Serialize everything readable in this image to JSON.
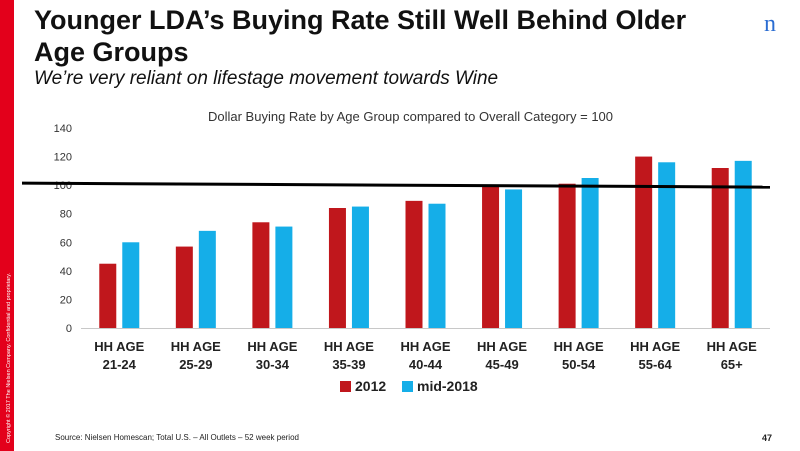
{
  "slide": {
    "title": "Younger LDA’s Buying Rate Still Well Behind Older Age Groups",
    "subtitle": "We’re very reliant on lifestage movement towards Wine",
    "source": "Source: Nielsen Homescan; Total U.S. – All Outlets – 52 week period",
    "page_number": "47",
    "copyright": "Copyright © 2017 The Nielsen Company. Confidential and proprietary.",
    "logo_letter": "n"
  },
  "colors": {
    "series_2012": "#c0171c",
    "series_2018": "#15aee8",
    "brand": "#e3001b",
    "reference_line": "#000000"
  },
  "chart_data": {
    "type": "bar",
    "title": "Dollar Buying Rate by Age Group compared to Overall Category = 100",
    "categories": [
      [
        "HH AGE",
        "21-24"
      ],
      [
        "HH AGE",
        "25-29"
      ],
      [
        "HH AGE",
        "30-34"
      ],
      [
        "HH AGE",
        "35-39"
      ],
      [
        "HH AGE",
        "40-44"
      ],
      [
        "HH AGE",
        "45-49"
      ],
      [
        "HH AGE",
        "50-54"
      ],
      [
        "HH AGE",
        "55-64"
      ],
      [
        "HH AGE",
        "65+"
      ]
    ],
    "series": [
      {
        "name": "2012",
        "values": [
          45,
          57,
          74,
          84,
          89,
          99,
          101,
          120,
          112
        ]
      },
      {
        "name": "mid-2018",
        "values": [
          60,
          68,
          71,
          85,
          87,
          97,
          105,
          116,
          117
        ]
      }
    ],
    "reference_line": 100,
    "y_ticks": [
      0,
      20,
      40,
      60,
      80,
      100,
      120,
      140
    ],
    "ylim": [
      0,
      140
    ],
    "xlabel": "",
    "ylabel": "",
    "legend_position": "bottom"
  }
}
